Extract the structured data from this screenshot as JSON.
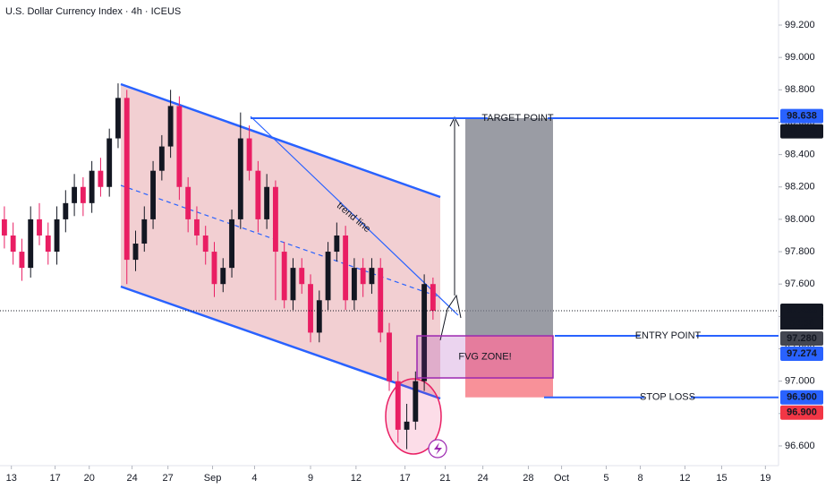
{
  "chart_data": {
    "type": "candlestick",
    "title": "U.S. Dollar Currency Index · 4h · ICEUS",
    "up_color": "#131722",
    "down_color": "#e91e63",
    "x": [
      0,
      1,
      2,
      3,
      4,
      5,
      6,
      7,
      8,
      9,
      10,
      11,
      12,
      13,
      14,
      15,
      16,
      17,
      18,
      19,
      20,
      21,
      22,
      23,
      24,
      25,
      26,
      27,
      28,
      29,
      30,
      31,
      32,
      33,
      34,
      35,
      36,
      37,
      38,
      39,
      40,
      41,
      42,
      43,
      44,
      45,
      46,
      47,
      48,
      49
    ],
    "open": [
      98.0,
      97.9,
      97.8,
      97.7,
      98.0,
      97.9,
      97.8,
      98.0,
      98.1,
      98.2,
      98.1,
      98.3,
      98.2,
      98.5,
      98.75,
      97.75,
      97.85,
      98.0,
      98.3,
      98.45,
      98.7,
      98.2,
      98.0,
      97.9,
      97.8,
      97.6,
      97.7,
      98.0,
      98.5,
      98.3,
      98.0,
      98.2,
      97.8,
      97.5,
      97.7,
      97.6,
      97.3,
      97.5,
      97.8,
      97.9,
      97.5,
      97.7,
      97.6,
      97.7,
      97.3,
      97.0,
      96.7,
      96.75,
      97.0,
      97.6
    ],
    "high": [
      98.08,
      97.98,
      97.88,
      98.08,
      98.1,
      97.98,
      98.08,
      98.18,
      98.28,
      98.26,
      98.36,
      98.38,
      98.56,
      98.84,
      98.8,
      97.93,
      98.08,
      98.36,
      98.52,
      98.8,
      98.76,
      98.26,
      98.08,
      97.96,
      97.86,
      97.76,
      98.06,
      98.66,
      98.58,
      98.36,
      98.28,
      98.24,
      97.86,
      97.76,
      97.76,
      97.66,
      97.56,
      97.86,
      97.98,
      97.96,
      97.76,
      97.76,
      97.76,
      97.76,
      97.36,
      97.06,
      96.86,
      97.06,
      97.66,
      97.64
    ],
    "low": [
      97.82,
      97.72,
      97.62,
      97.64,
      97.84,
      97.72,
      97.72,
      97.92,
      98.02,
      98.02,
      98.04,
      98.14,
      98.14,
      98.44,
      97.6,
      97.68,
      97.8,
      97.94,
      98.24,
      98.38,
      98.12,
      97.92,
      97.84,
      97.72,
      97.52,
      97.55,
      97.64,
      97.94,
      98.24,
      97.92,
      97.94,
      97.5,
      97.45,
      97.44,
      97.54,
      97.24,
      97.24,
      97.44,
      97.74,
      97.44,
      97.44,
      97.52,
      97.54,
      97.24,
      96.94,
      96.62,
      96.58,
      96.7,
      96.94,
      97.38
    ],
    "close": [
      97.9,
      97.8,
      97.7,
      98.0,
      97.9,
      97.8,
      98.0,
      98.1,
      98.2,
      98.1,
      98.3,
      98.2,
      98.5,
      98.75,
      97.75,
      97.85,
      98.0,
      98.3,
      98.45,
      98.7,
      98.2,
      98.0,
      97.9,
      97.8,
      97.6,
      97.7,
      98.0,
      98.5,
      98.3,
      98.0,
      98.2,
      97.8,
      97.5,
      97.7,
      97.6,
      97.3,
      97.5,
      97.8,
      97.9,
      97.5,
      97.7,
      97.6,
      97.7,
      97.3,
      97.0,
      96.7,
      96.75,
      97.0,
      97.6,
      97.435
    ],
    "xlim": [
      -0.5,
      88.5
    ],
    "xticks": [
      {
        "value": 0.8,
        "label": "13"
      },
      {
        "value": 5.8,
        "label": "17"
      },
      {
        "value": 9.7,
        "label": "20"
      },
      {
        "value": 14.6,
        "label": "24"
      },
      {
        "value": 18.7,
        "label": "27"
      },
      {
        "value": 23.8,
        "label": "Sep"
      },
      {
        "value": 28.6,
        "label": "4"
      },
      {
        "value": 35.0,
        "label": "9"
      },
      {
        "value": 40.2,
        "label": "12"
      },
      {
        "value": 45.8,
        "label": "17"
      },
      {
        "value": 50.4,
        "label": "21"
      },
      {
        "value": 54.7,
        "label": "24"
      },
      {
        "value": 59.9,
        "label": "28"
      },
      {
        "value": 63.7,
        "label": "Oct"
      },
      {
        "value": 68.8,
        "label": "5"
      },
      {
        "value": 72.7,
        "label": "8"
      },
      {
        "value": 77.8,
        "label": "12"
      },
      {
        "value": 82.0,
        "label": "15"
      },
      {
        "value": 87.0,
        "label": "19"
      }
    ],
    "ylim": [
      96.478,
      99.355
    ],
    "yticks": [
      {
        "value": 96.6,
        "label": "96.600"
      },
      {
        "value": 96.8,
        "label": "96.800"
      },
      {
        "value": 97.0,
        "label": "97.000"
      },
      {
        "value": 97.2,
        "label": "97.200"
      },
      {
        "value": 97.4,
        "label": "97.400"
      },
      {
        "value": 97.6,
        "label": "97.600"
      },
      {
        "value": 97.8,
        "label": "97.800"
      },
      {
        "value": 98.0,
        "label": "98.000"
      },
      {
        "value": 98.2,
        "label": "98.200"
      },
      {
        "value": 98.4,
        "label": "98.400"
      },
      {
        "value": 98.6,
        "label": "98.600"
      },
      {
        "value": 98.8,
        "label": "98.800"
      },
      {
        "value": 99.0,
        "label": "99.000"
      },
      {
        "value": 99.2,
        "label": "99.200"
      }
    ],
    "price_labels": [
      {
        "value": 98.638,
        "label": "98.638",
        "color": "#2962ff"
      },
      {
        "value": 98.625,
        "label": "98.625",
        "color": "#131722"
      },
      {
        "value": 97.435,
        "label": "97.435",
        "color": "#131722"
      },
      {
        "value": 97.28,
        "label": "97.280",
        "color": "#434651"
      },
      {
        "value": 97.274,
        "label": "97.274",
        "color": "#2962ff"
      },
      {
        "value": 96.9,
        "label": "96.900",
        "color": "#2962ff"
      },
      {
        "value": 96.9,
        "label": "96.900",
        "color": "#f23645"
      }
    ],
    "countdown": "54:56",
    "levels": [
      {
        "label": "TARGET POINT",
        "value": 98.625
      },
      {
        "label": "ENTRY POINT",
        "value": 97.28
      },
      {
        "label": "STOP LOSS",
        "value": 96.9
      }
    ],
    "fvg": {
      "label": "FVG ZONE!",
      "top": 97.28,
      "bottom": 97.02
    },
    "trend_label": "trend line"
  }
}
